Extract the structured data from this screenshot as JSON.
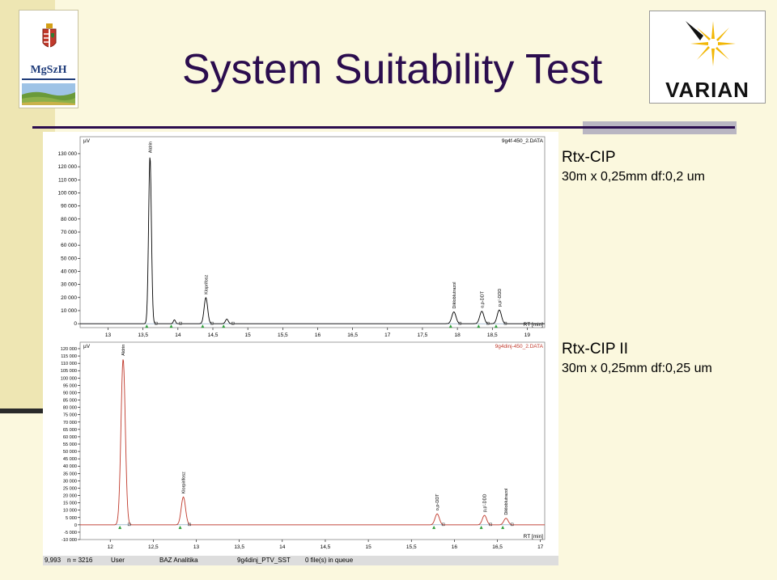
{
  "slide": {
    "title": "System Suitability Test",
    "logo_left": {
      "icon": "coat-of-arms-icon",
      "text": "MgSzH"
    },
    "logo_right": {
      "text": "VARIAN",
      "colors": [
        "#f2b705",
        "#111111"
      ]
    }
  },
  "columns": [
    {
      "name": "Rtx-CIP",
      "dims": "30m x 0,25mm df:0,2 um"
    },
    {
      "name": "Rtx-CIP II",
      "dims": "30m x 0,25mm df:0,25 um"
    }
  ],
  "status_bar": {
    "fields": [
      "9,993",
      "n = 3216",
      "User",
      "BAZ Analitika",
      "9g4dinj_PTV_SST",
      "0 file(s) in queue"
    ]
  },
  "chart_data": [
    {
      "type": "line",
      "file_label": "9g4f-450_2.DATA",
      "yunit": "µV",
      "xlabel": "RT [min]",
      "xlim": [
        12.6,
        19.25
      ],
      "ylim": [
        -3000,
        138000
      ],
      "x_ticks": [
        "13",
        "13,5",
        "14",
        "14,5",
        "15",
        "15,5",
        "16",
        "16,5",
        "17",
        "17,5",
        "18",
        "18,5",
        "19"
      ],
      "y_ticks": [
        "0",
        "10 000",
        "20 000",
        "30 000",
        "40 000",
        "50 000",
        "60 000",
        "70 000",
        "80 000",
        "90 000",
        "100 000",
        "110 000",
        "120 000",
        "130 000"
      ],
      "line_color": "#000000",
      "peaks": [
        {
          "rt": 13.6,
          "height": 128000,
          "width": 0.02,
          "label": "Aldrin"
        },
        {
          "rt": 13.95,
          "height": 3000,
          "width": 0.015,
          "label": ""
        },
        {
          "rt": 14.4,
          "height": 20000,
          "width": 0.025,
          "label": "Kloprifosz"
        },
        {
          "rt": 14.7,
          "height": 3500,
          "width": 0.02,
          "label": ""
        },
        {
          "rt": 17.95,
          "height": 9000,
          "width": 0.03,
          "label": "Dikloblutrazol"
        },
        {
          "rt": 18.35,
          "height": 9500,
          "width": 0.03,
          "label": "o,p-DDT"
        },
        {
          "rt": 18.6,
          "height": 10500,
          "width": 0.03,
          "label": "p,p'-DDD"
        }
      ]
    },
    {
      "type": "line",
      "file_label": "9g4dinj-450_2.DATA",
      "yunit": "µV",
      "xlabel": "RT [min]",
      "xlim": [
        11.65,
        17.05
      ],
      "ylim": [
        -10000,
        120000
      ],
      "x_ticks": [
        "12",
        "12,5",
        "13",
        "13,5",
        "14",
        "14,5",
        "15",
        "15,5",
        "16",
        "16,5",
        "17"
      ],
      "y_ticks": [
        "-10 000",
        "-5 000",
        "0",
        "5 000",
        "10 000",
        "15 000",
        "20 000",
        "25 000",
        "30 000",
        "35 000",
        "40 000",
        "45 000",
        "50 000",
        "55 000",
        "60 000",
        "65 000",
        "70 000",
        "75 000",
        "80 000",
        "85 000",
        "90 000",
        "95 000",
        "100 000",
        "105 000",
        "110 000",
        "115 000",
        "120 000"
      ],
      "line_color": "#c0392b",
      "peaks": [
        {
          "rt": 12.15,
          "height": 113000,
          "width": 0.025,
          "label": "Aldrin"
        },
        {
          "rt": 12.85,
          "height": 19000,
          "width": 0.025,
          "label": "Klorpirifosz"
        },
        {
          "rt": 15.8,
          "height": 7500,
          "width": 0.025,
          "label": "o,p-DDT"
        },
        {
          "rt": 16.35,
          "height": 6500,
          "width": 0.025,
          "label": "p,p'-DDD"
        },
        {
          "rt": 16.6,
          "height": 4500,
          "width": 0.025,
          "label": "Dikloblutrazol"
        }
      ]
    }
  ]
}
